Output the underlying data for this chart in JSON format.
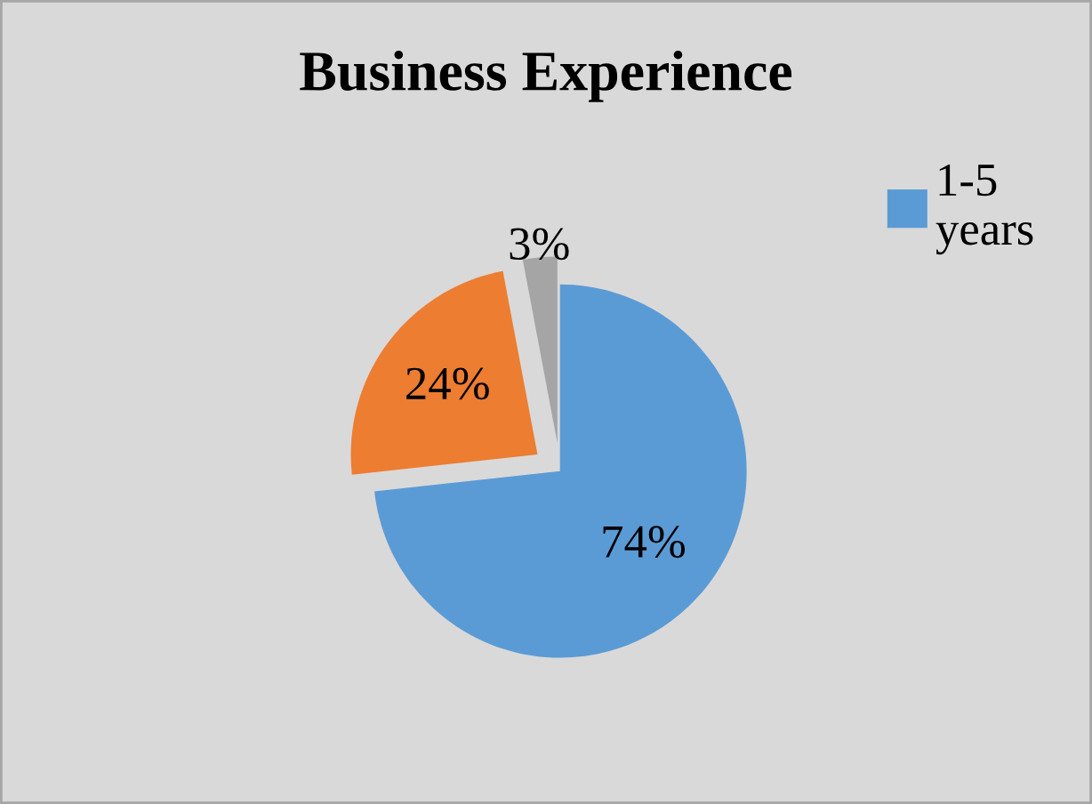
{
  "chart_data": {
    "type": "pie",
    "title": "Business Experience",
    "categories": [
      "1-5 years",
      null,
      null
    ],
    "values": [
      74,
      24,
      3
    ],
    "colors": [
      "#5b9bd5",
      "#ed7d31",
      "#a5a5a5"
    ],
    "value_labels": [
      "74%",
      "24%",
      "3%"
    ],
    "legend": "right"
  }
}
